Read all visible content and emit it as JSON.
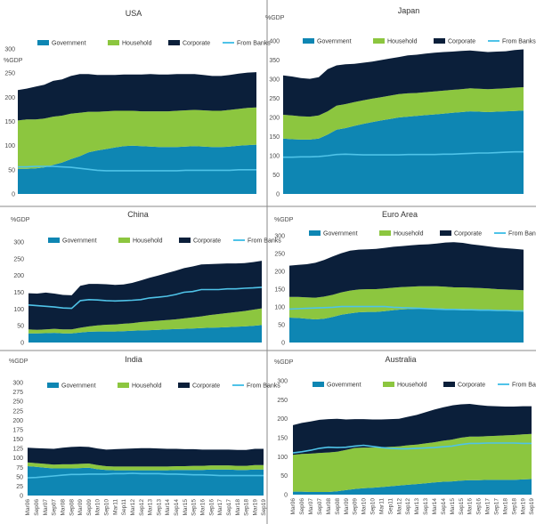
{
  "colors": {
    "government": "#0e86b3",
    "household": "#8cc63f",
    "corporate": "#0b1f3a",
    "from_banks": "#4fc3e8",
    "text": "#333333",
    "axis_text": "#4a4a4a",
    "divider": "#8a8a8a"
  },
  "y_unit_label": "%GDP",
  "legend_labels": [
    "Government",
    "Household",
    "Corporate",
    "From Banks"
  ],
  "x_tick_labels": [
    "Mar06",
    "Sep06",
    "Mar07",
    "Sep07",
    "Mar08",
    "Sep08",
    "Mar09",
    "Sep09",
    "Mar10",
    "Sep10",
    "Mar11",
    "Sep11",
    "Mar12",
    "Sep12",
    "Mar13",
    "Sep13",
    "Mar14",
    "Sep14",
    "Mar15",
    "Sep15",
    "Mar16",
    "Sep16",
    "Mar17",
    "Sep17",
    "Mar18",
    "Sep18",
    "Mar19",
    "Sep19"
  ],
  "chart_data": [
    {
      "type": "area",
      "title": "USA",
      "ylabel": "%GDP",
      "ylim": [
        0,
        300
      ],
      "yticks": [
        0,
        50,
        100,
        150,
        200,
        250,
        300
      ],
      "grid": false,
      "legend": "top",
      "x_tick_labels_shown": false,
      "x": [
        "Mar06",
        "Sep06",
        "Mar07",
        "Sep07",
        "Mar08",
        "Sep08",
        "Mar09",
        "Sep09",
        "Mar10",
        "Sep10",
        "Mar11",
        "Sep11",
        "Mar12",
        "Sep12",
        "Mar13",
        "Sep13",
        "Mar14",
        "Sep14",
        "Mar15",
        "Sep15",
        "Mar16",
        "Sep16",
        "Mar17",
        "Sep17",
        "Mar18",
        "Sep18",
        "Mar19",
        "Sep19"
      ],
      "series": [
        {
          "name": "Government",
          "kind": "stacked_area",
          "values": [
            52,
            52,
            53,
            55,
            60,
            65,
            72,
            78,
            86,
            90,
            93,
            96,
            99,
            100,
            99,
            98,
            97,
            97,
            97,
            98,
            99,
            98,
            97,
            97,
            98,
            100,
            101,
            102
          ]
        },
        {
          "name": "Household",
          "kind": "stacked_area",
          "values": [
            100,
            102,
            101,
            101,
            100,
            97,
            94,
            90,
            84,
            80,
            78,
            76,
            73,
            72,
            72,
            73,
            74,
            74,
            75,
            75,
            75,
            75,
            75,
            75,
            76,
            76,
            77,
            77
          ]
        },
        {
          "name": "Corporate",
          "kind": "stacked_area",
          "values": [
            63,
            64,
            68,
            70,
            74,
            75,
            78,
            80,
            78,
            76,
            75,
            74,
            75,
            75,
            76,
            77,
            76,
            76,
            76,
            75,
            74,
            73,
            72,
            72,
            72,
            73,
            73,
            73
          ]
        },
        {
          "name": "From Banks",
          "kind": "line",
          "values": [
            56,
            56,
            57,
            57,
            57,
            56,
            55,
            53,
            51,
            49,
            48,
            48,
            48,
            48,
            48,
            48,
            48,
            48,
            48,
            49,
            49,
            49,
            49,
            49,
            49,
            50,
            50,
            50
          ]
        }
      ]
    },
    {
      "type": "area",
      "title": "Japan",
      "ylabel": "%GDP",
      "ylim": [
        0,
        400
      ],
      "yticks": [
        0,
        50,
        100,
        150,
        200,
        250,
        300,
        350,
        400
      ],
      "grid": false,
      "legend": "top",
      "x_tick_labels_shown": false,
      "x": [
        "Mar06",
        "Sep06",
        "Mar07",
        "Sep07",
        "Mar08",
        "Sep08",
        "Mar09",
        "Sep09",
        "Mar10",
        "Sep10",
        "Mar11",
        "Sep11",
        "Mar12",
        "Sep12",
        "Mar13",
        "Sep13",
        "Mar14",
        "Sep14",
        "Mar15",
        "Sep15",
        "Mar16",
        "Sep16",
        "Mar17",
        "Sep17",
        "Mar18",
        "Sep18",
        "Mar19",
        "Sep19"
      ],
      "series": [
        {
          "name": "Government",
          "kind": "stacked_area",
          "values": [
            145,
            143,
            142,
            142,
            145,
            155,
            168,
            172,
            178,
            183,
            188,
            192,
            196,
            200,
            202,
            204,
            206,
            208,
            210,
            212,
            214,
            216,
            215,
            214,
            215,
            216,
            217,
            218
          ]
        },
        {
          "name": "Household",
          "kind": "stacked_area",
          "values": [
            62,
            62,
            61,
            60,
            60,
            61,
            63,
            63,
            62,
            62,
            61,
            61,
            61,
            61,
            61,
            60,
            60,
            60,
            60,
            60,
            60,
            60,
            60,
            60,
            60,
            60,
            61,
            61
          ]
        },
        {
          "name": "Corporate",
          "kind": "stacked_area",
          "values": [
            103,
            102,
            100,
            99,
            100,
            110,
            105,
            104,
            100,
            98,
            97,
            97,
            97,
            97,
            99,
            100,
            101,
            101,
            101,
            100,
            100,
            99,
            98,
            97,
            97,
            97,
            98,
            99
          ]
        },
        {
          "name": "From Banks",
          "kind": "line",
          "values": [
            96,
            96,
            97,
            97,
            98,
            100,
            103,
            104,
            103,
            102,
            102,
            102,
            102,
            102,
            103,
            103,
            103,
            103,
            104,
            104,
            105,
            106,
            107,
            107,
            108,
            109,
            110,
            110
          ]
        }
      ]
    },
    {
      "type": "area",
      "title": "China",
      "ylabel": "%GDP",
      "ylim": [
        0,
        300
      ],
      "yticks": [
        0,
        50,
        100,
        150,
        200,
        250,
        300
      ],
      "grid": false,
      "legend": "top",
      "x_tick_labels_shown": false,
      "x": [
        "Mar06",
        "Sep06",
        "Mar07",
        "Sep07",
        "Mar08",
        "Sep08",
        "Mar09",
        "Sep09",
        "Mar10",
        "Sep10",
        "Mar11",
        "Sep11",
        "Mar12",
        "Sep12",
        "Mar13",
        "Sep13",
        "Mar14",
        "Sep14",
        "Mar15",
        "Sep15",
        "Mar16",
        "Sep16",
        "Mar17",
        "Sep17",
        "Mar18",
        "Sep18",
        "Mar19",
        "Sep19"
      ],
      "series": [
        {
          "name": "Government",
          "kind": "stacked_area",
          "values": [
            27,
            27,
            28,
            29,
            27,
            27,
            30,
            32,
            33,
            33,
            33,
            34,
            35,
            36,
            37,
            38,
            39,
            40,
            41,
            42,
            43,
            44,
            45,
            46,
            47,
            48,
            50,
            52
          ]
        },
        {
          "name": "Household",
          "kind": "stacked_area",
          "values": [
            12,
            11,
            11,
            12,
            12,
            12,
            14,
            16,
            18,
            20,
            21,
            22,
            23,
            25,
            26,
            27,
            28,
            29,
            31,
            33,
            35,
            38,
            40,
            42,
            44,
            46,
            48,
            50
          ]
        },
        {
          "name": "Corporate",
          "kind": "stacked_area",
          "values": [
            108,
            108,
            110,
            105,
            103,
            102,
            125,
            127,
            124,
            121,
            118,
            117,
            120,
            124,
            130,
            135,
            140,
            145,
            150,
            152,
            155,
            152,
            150,
            148,
            145,
            143,
            142,
            142
          ]
        },
        {
          "name": "From Banks",
          "kind": "line",
          "values": [
            112,
            110,
            108,
            106,
            103,
            102,
            125,
            128,
            127,
            125,
            124,
            125,
            126,
            128,
            133,
            135,
            138,
            143,
            150,
            152,
            158,
            158,
            158,
            160,
            160,
            162,
            163,
            165
          ]
        }
      ]
    },
    {
      "type": "area",
      "title": "Euro Area",
      "ylabel": "%GDP",
      "ylim": [
        0,
        300
      ],
      "yticks": [
        0,
        50,
        100,
        150,
        200,
        250,
        300
      ],
      "grid": false,
      "legend": "top",
      "x_tick_labels_shown": false,
      "x": [
        "Mar06",
        "Sep06",
        "Mar07",
        "Sep07",
        "Mar08",
        "Sep08",
        "Mar09",
        "Sep09",
        "Mar10",
        "Sep10",
        "Mar11",
        "Sep11",
        "Mar12",
        "Sep12",
        "Mar13",
        "Sep13",
        "Mar14",
        "Sep14",
        "Mar15",
        "Sep15",
        "Mar16",
        "Sep16",
        "Mar17",
        "Sep17",
        "Mar18",
        "Sep18",
        "Mar19",
        "Sep19"
      ],
      "series": [
        {
          "name": "Government",
          "kind": "stacked_area",
          "values": [
            70,
            69,
            67,
            65,
            67,
            72,
            78,
            82,
            85,
            86,
            86,
            88,
            91,
            93,
            94,
            95,
            96,
            96,
            95,
            94,
            94,
            93,
            92,
            91,
            90,
            89,
            88,
            87
          ]
        },
        {
          "name": "Household",
          "kind": "stacked_area",
          "values": [
            58,
            59,
            60,
            61,
            62,
            62,
            63,
            64,
            64,
            64,
            64,
            64,
            63,
            63,
            63,
            63,
            62,
            62,
            62,
            61,
            61,
            61,
            61,
            61,
            60,
            60,
            60,
            60
          ]
        },
        {
          "name": "Corporate",
          "kind": "stacked_area",
          "values": [
            88,
            90,
            93,
            98,
            103,
            108,
            110,
            112,
            112,
            112,
            113,
            114,
            115,
            115,
            116,
            117,
            118,
            120,
            124,
            127,
            125,
            122,
            120,
            118,
            117,
            116,
            115,
            114
          ]
        },
        {
          "name": "From Banks",
          "kind": "line",
          "values": [
            94,
            95,
            96,
            97,
            98,
            99,
            101,
            101,
            101,
            101,
            101,
            101,
            99,
            98,
            97,
            96,
            95,
            94,
            93,
            93,
            92,
            92,
            91,
            91,
            90,
            90,
            89,
            89
          ]
        }
      ]
    },
    {
      "type": "area",
      "title": "India",
      "ylabel": "%GDP",
      "ylim": [
        0,
        300
      ],
      "yticks": [
        0,
        25,
        50,
        75,
        100,
        125,
        150,
        175,
        200,
        225,
        250,
        275,
        300
      ],
      "grid": false,
      "legend": "top",
      "x_tick_labels_shown": true,
      "x": [
        "Mar06",
        "Sep06",
        "Mar07",
        "Sep07",
        "Mar08",
        "Sep08",
        "Mar09",
        "Sep09",
        "Mar10",
        "Sep10",
        "Mar11",
        "Sep11",
        "Mar12",
        "Sep12",
        "Mar13",
        "Sep13",
        "Mar14",
        "Sep14",
        "Mar15",
        "Sep15",
        "Mar16",
        "Sep16",
        "Mar17",
        "Sep17",
        "Mar18",
        "Sep18",
        "Mar19",
        "Sep19"
      ],
      "series": [
        {
          "name": "Government",
          "kind": "stacked_area",
          "values": [
            78,
            76,
            74,
            72,
            72,
            72,
            73,
            74,
            70,
            68,
            67,
            67,
            67,
            67,
            67,
            67,
            67,
            68,
            68,
            68,
            68,
            69,
            69,
            69,
            68,
            68,
            69,
            69
          ]
        },
        {
          "name": "Household",
          "kind": "stacked_area",
          "values": [
            10,
            10,
            10,
            10,
            11,
            11,
            11,
            11,
            11,
            10,
            10,
            10,
            10,
            10,
            10,
            10,
            10,
            10,
            10,
            11,
            11,
            11,
            11,
            11,
            11,
            11,
            12,
            12
          ]
        },
        {
          "name": "Corporate",
          "kind": "stacked_area",
          "values": [
            39,
            40,
            41,
            42,
            44,
            46,
            46,
            44,
            44,
            44,
            46,
            47,
            48,
            49,
            49,
            48,
            47,
            46,
            45,
            44,
            43,
            42,
            42,
            42,
            42,
            42,
            43,
            43
          ]
        },
        {
          "name": "From Banks",
          "kind": "line",
          "values": [
            47,
            48,
            50,
            52,
            54,
            56,
            56,
            57,
            57,
            57,
            58,
            58,
            59,
            58,
            58,
            58,
            57,
            57,
            56,
            55,
            55,
            54,
            53,
            53,
            53,
            53,
            53,
            53
          ]
        }
      ]
    },
    {
      "type": "area",
      "title": "Australia",
      "ylabel": "%GDP",
      "ylim": [
        0,
        300
      ],
      "yticks": [
        0,
        50,
        100,
        150,
        200,
        250,
        300
      ],
      "grid": false,
      "legend": "top",
      "x_tick_labels_shown": true,
      "x": [
        "Mar06",
        "Sep06",
        "Mar07",
        "Sep07",
        "Mar08",
        "Sep08",
        "Mar09",
        "Sep09",
        "Mar10",
        "Sep10",
        "Mar11",
        "Sep11",
        "Mar12",
        "Sep12",
        "Mar13",
        "Sep13",
        "Mar14",
        "Sep14",
        "Mar15",
        "Sep15",
        "Mar16",
        "Sep16",
        "Mar17",
        "Sep17",
        "Mar18",
        "Sep18",
        "Mar19",
        "Sep19"
      ],
      "series": [
        {
          "name": "Government",
          "kind": "stacked_area",
          "values": [
            8,
            8,
            7,
            7,
            7,
            9,
            12,
            15,
            17,
            18,
            20,
            22,
            24,
            26,
            28,
            30,
            32,
            34,
            35,
            37,
            38,
            38,
            39,
            39,
            39,
            39,
            40,
            41
          ]
        },
        {
          "name": "Household",
          "kind": "stacked_area",
          "values": [
            97,
            99,
            101,
            103,
            104,
            104,
            106,
            108,
            107,
            106,
            105,
            104,
            103,
            104,
            104,
            105,
            106,
            108,
            110,
            113,
            115,
            115,
            115,
            116,
            117,
            118,
            119,
            119
          ]
        },
        {
          "name": "Corporate",
          "kind": "stacked_area",
          "values": [
            78,
            82,
            85,
            87,
            88,
            87,
            80,
            76,
            75,
            74,
            73,
            73,
            73,
            75,
            78,
            82,
            86,
            88,
            90,
            88,
            86,
            83,
            80,
            78,
            76,
            75,
            74,
            73
          ]
        },
        {
          "name": "From Banks",
          "kind": "line",
          "values": [
            110,
            113,
            117,
            122,
            125,
            124,
            125,
            128,
            130,
            127,
            124,
            122,
            121,
            121,
            122,
            123,
            124,
            126,
            128,
            132,
            135,
            135,
            136,
            136,
            136,
            136,
            135,
            135
          ]
        }
      ]
    }
  ]
}
